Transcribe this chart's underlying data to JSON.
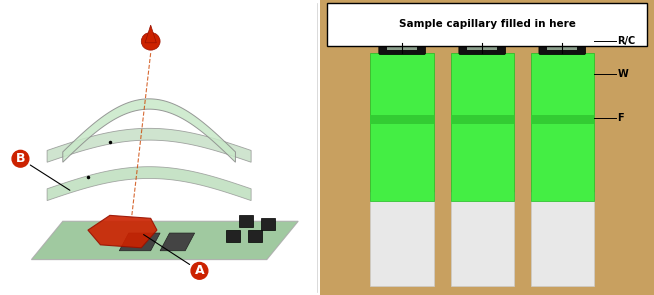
{
  "figsize": [
    6.54,
    2.95
  ],
  "dpi": 100,
  "background_color": "#ffffff",
  "left_panel": {
    "bg_color": "#ffffff",
    "blood_drop_color": "#cc2200",
    "strip_color": "#90c090",
    "label_A": "A",
    "label_B": "B",
    "label_A_color": "#cc2200",
    "label_B_color": "#cc2200"
  },
  "right_panel": {
    "bg_color": "#c8a060",
    "strip_green": "#44ee44",
    "strip_top_color": "#111111",
    "strip_bottom_color": "#e8e8e8",
    "annotation_text": "Sample capillary filled in here",
    "label_RC": "R/C",
    "label_W": "W",
    "label_F": "F"
  }
}
